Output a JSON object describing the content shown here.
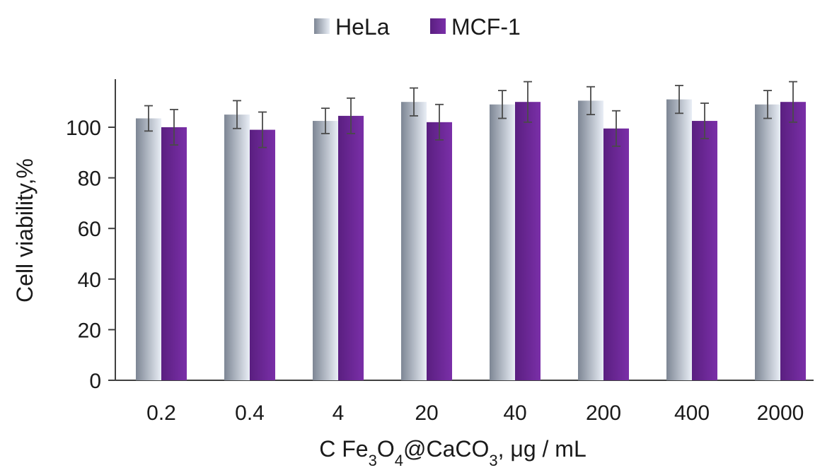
{
  "chart_data": {
    "type": "bar",
    "title": "",
    "xlabel": "C Fe3O4@CaCO3, μg / mL",
    "xlabel_parts": {
      "prefix": "C Fe",
      "sub1": "3",
      "mid1": "O",
      "sub2": "4",
      "mid2": "@CaCO",
      "sub3": "3",
      "suffix": ", μg / mL"
    },
    "ylabel": "Cell viability,%",
    "ylim": [
      0,
      120
    ],
    "yticks": [
      0,
      20,
      40,
      60,
      80,
      100
    ],
    "categories": [
      "0.2",
      "0.4",
      "4",
      "20",
      "40",
      "200",
      "400",
      "2000"
    ],
    "series": [
      {
        "name": "HeLa",
        "color_dark": "#7d8694",
        "color_light": "#e9eef6",
        "values": [
          103.5,
          105,
          102.5,
          110,
          109,
          110.5,
          111,
          109
        ],
        "errors": [
          5,
          5.5,
          5,
          5.5,
          5.5,
          5.5,
          5.5,
          5.5
        ]
      },
      {
        "name": "MCF-1",
        "color_dark": "#5a1f80",
        "color_light": "#7a2fa8",
        "values": [
          100,
          99,
          104.5,
          102,
          110,
          99.5,
          102.5,
          110
        ],
        "errors": [
          7,
          7,
          7,
          7,
          8,
          7,
          7,
          8
        ]
      }
    ],
    "legend_position": "top-center",
    "grid": false
  }
}
